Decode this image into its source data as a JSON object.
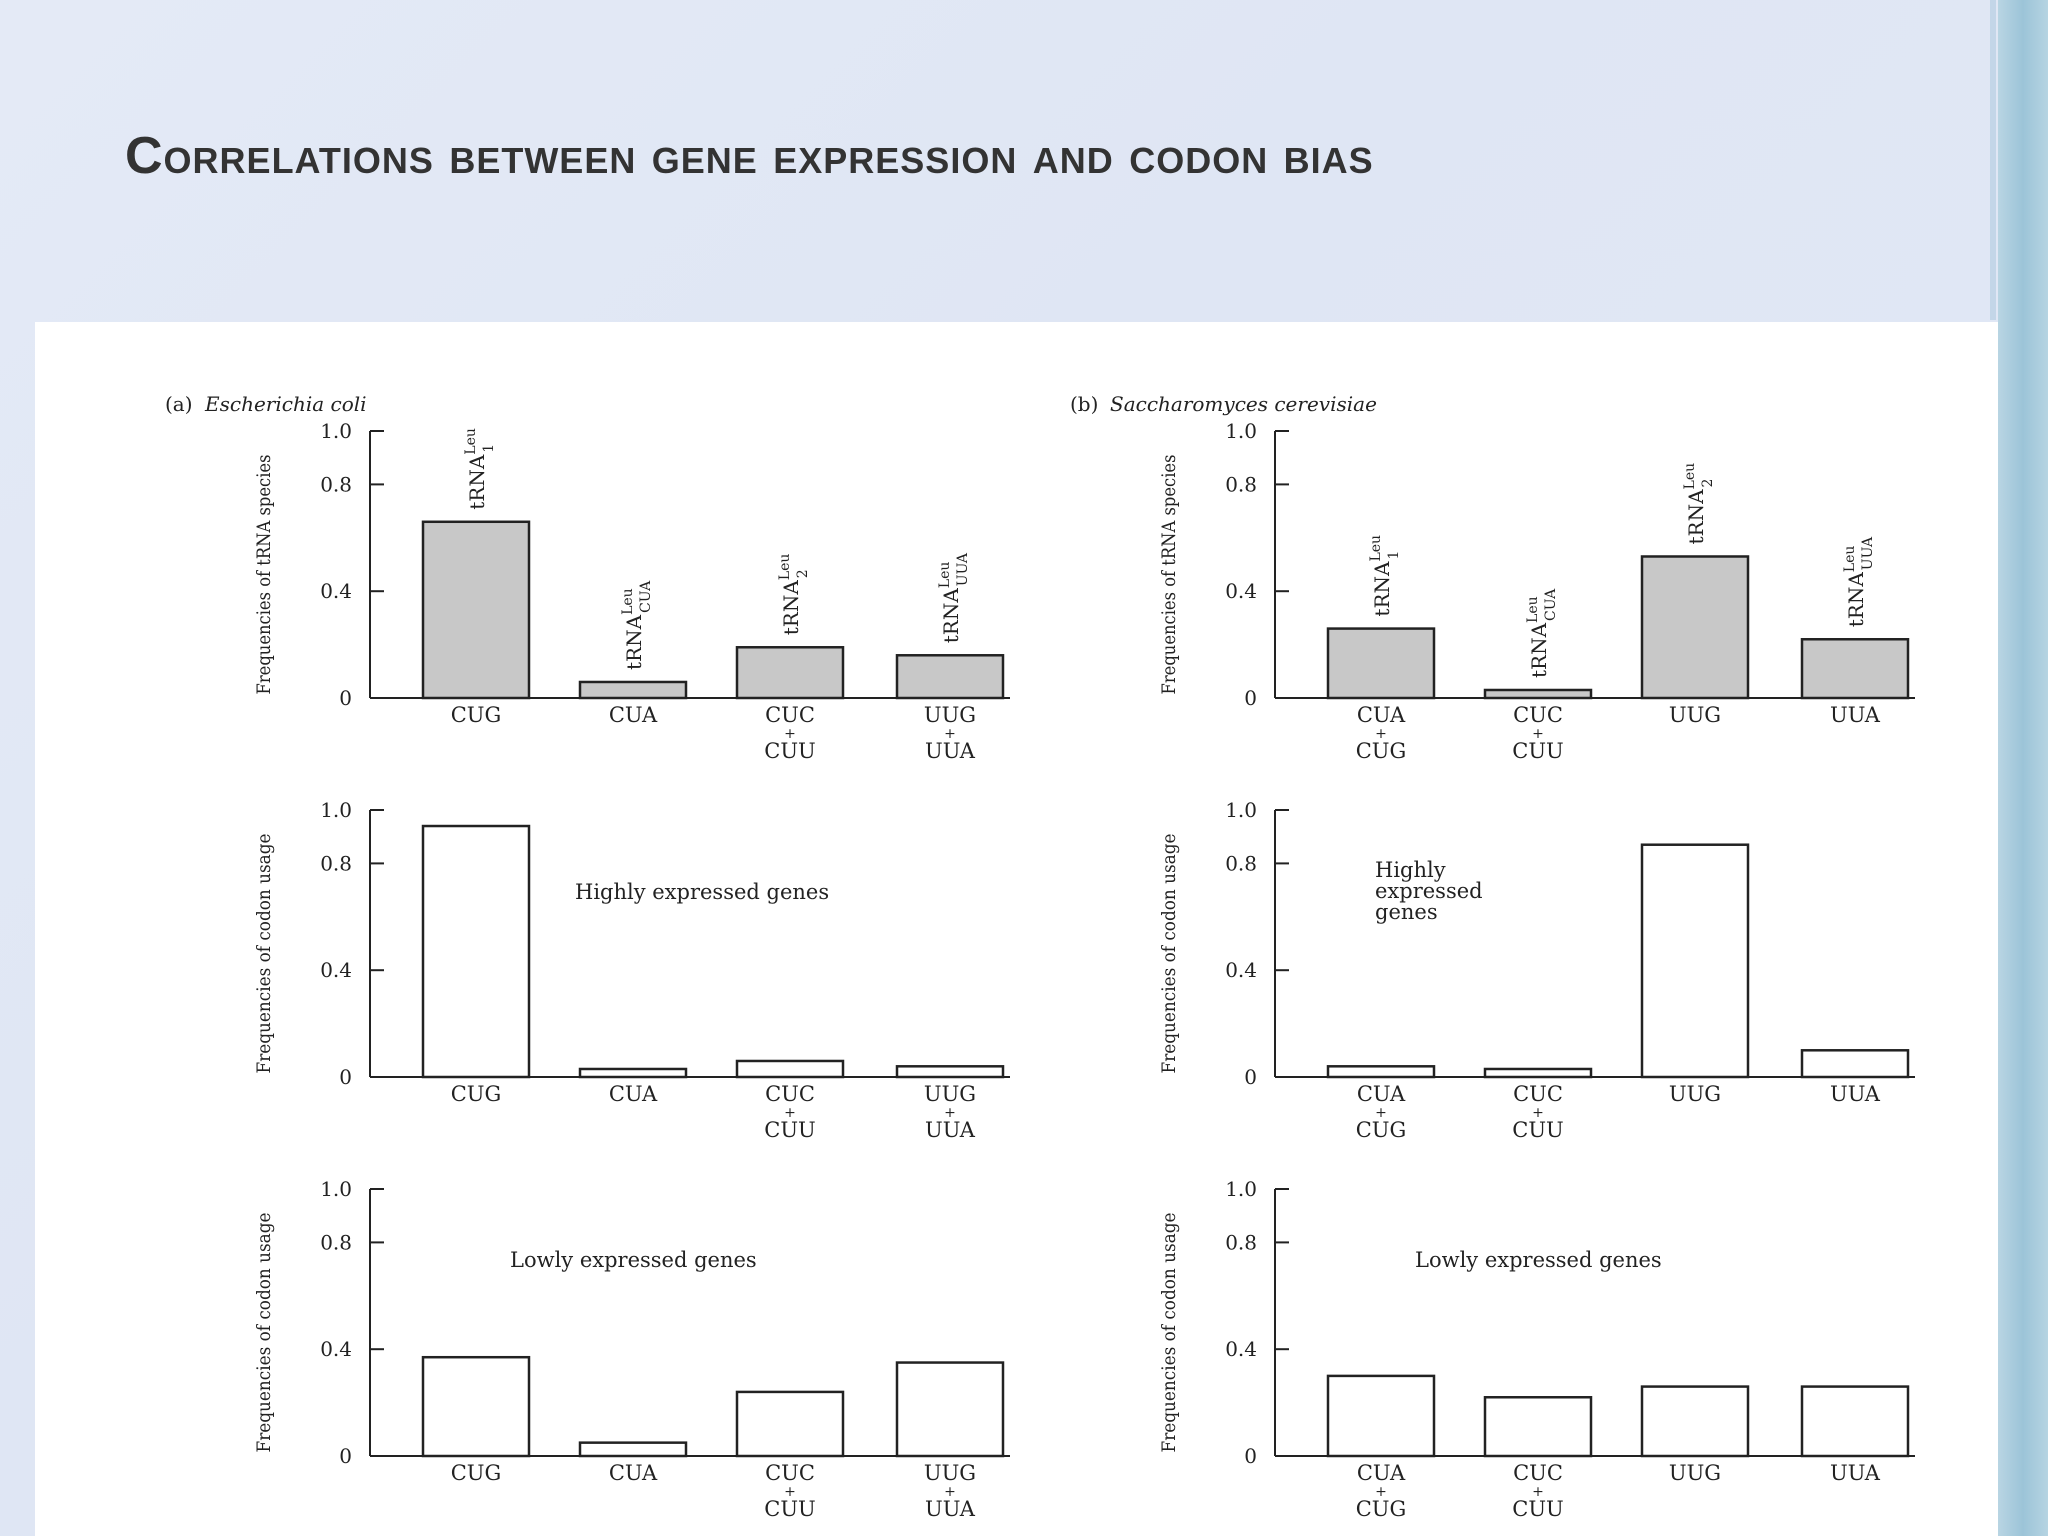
{
  "slide": {
    "title": "Correlations between gene expression and codon bias"
  },
  "chart_data": [
    {
      "type": "bar",
      "id": "a-trna",
      "panel_label": "(a)",
      "organism": "Escherichia coli",
      "ylabel": "Frequencies of tRNA species",
      "annotation": "",
      "categories": [
        [
          "CUG"
        ],
        [
          "CUA"
        ],
        [
          "CUC",
          "+",
          "CUU"
        ],
        [
          "UUG",
          "+",
          "UUA"
        ]
      ],
      "bar_labels": [
        {
          "base": "tRNA",
          "sup": "Leu",
          "sub": "1"
        },
        {
          "base": "tRNA",
          "sup": "Leu",
          "sub": "CUA"
        },
        {
          "base": "tRNA",
          "sup": "Leu",
          "sub": "2"
        },
        {
          "base": "tRNA",
          "sup": "Leu",
          "sub": "UUA"
        }
      ],
      "values": [
        0.66,
        0.06,
        0.19,
        0.16
      ],
      "yticks": [
        "1.0",
        "0.8",
        "0.4",
        "0"
      ],
      "ytick_values": [
        1.0,
        0.8,
        0.4,
        0
      ],
      "ylim": [
        0,
        1.0
      ],
      "fill": "#c8c8c8"
    },
    {
      "type": "bar",
      "id": "b-trna",
      "panel_label": "(b)",
      "organism": "Saccharomyces cerevisiae",
      "ylabel": "Frequencies of tRNA species",
      "annotation": "",
      "categories": [
        [
          "CUA",
          "+",
          "CUG"
        ],
        [
          "CUC",
          "+",
          "CUU"
        ],
        [
          "UUG"
        ],
        [
          "UUA"
        ]
      ],
      "bar_labels": [
        {
          "base": "tRNA",
          "sup": "Leu",
          "sub": "1"
        },
        {
          "base": "tRNA",
          "sup": "Leu",
          "sub": "CUA"
        },
        {
          "base": "tRNA",
          "sup": "Leu",
          "sub": "2"
        },
        {
          "base": "tRNA",
          "sup": "Leu",
          "sub": "UUA"
        }
      ],
      "values": [
        0.26,
        0.03,
        0.53,
        0.22
      ],
      "yticks": [
        "1.0",
        "0.8",
        "0.4",
        "0"
      ],
      "ytick_values": [
        1.0,
        0.8,
        0.4,
        0
      ],
      "ylim": [
        0,
        1.0
      ],
      "fill": "#c8c8c8"
    },
    {
      "type": "bar",
      "id": "a-high",
      "panel_label": "",
      "organism": "",
      "ylabel": "Frequencies of codon usage",
      "annotation": [
        "Highly expressed genes"
      ],
      "categories": [
        [
          "CUG"
        ],
        [
          "CUA"
        ],
        [
          "CUC",
          "+",
          "CUU"
        ],
        [
          "UUG",
          "+",
          "UUA"
        ]
      ],
      "bar_labels": [],
      "values": [
        0.94,
        0.03,
        0.06,
        0.04
      ],
      "yticks": [
        "1.0",
        "0.8",
        "0.4",
        "0"
      ],
      "ytick_values": [
        1.0,
        0.8,
        0.4,
        0
      ],
      "ylim": [
        0,
        1.0
      ],
      "fill": "#ffffff"
    },
    {
      "type": "bar",
      "id": "b-high",
      "panel_label": "",
      "organism": "",
      "ylabel": "Frequencies of codon usage",
      "annotation": [
        "Highly",
        "expressed",
        "genes"
      ],
      "categories": [
        [
          "CUA",
          "+",
          "CUG"
        ],
        [
          "CUC",
          "+",
          "CUU"
        ],
        [
          "UUG"
        ],
        [
          "UUA"
        ]
      ],
      "bar_labels": [],
      "values": [
        0.04,
        0.03,
        0.87,
        0.1
      ],
      "yticks": [
        "1.0",
        "0.8",
        "0.4",
        "0"
      ],
      "ytick_values": [
        1.0,
        0.8,
        0.4,
        0
      ],
      "ylim": [
        0,
        1.0
      ],
      "fill": "#ffffff"
    },
    {
      "type": "bar",
      "id": "a-low",
      "panel_label": "",
      "organism": "",
      "ylabel": "Frequencies of codon usage",
      "annotation": [
        "Lowly expressed genes"
      ],
      "categories": [
        [
          "CUG"
        ],
        [
          "CUA"
        ],
        [
          "CUC",
          "+",
          "CUU"
        ],
        [
          "UUG",
          "+",
          "UUA"
        ]
      ],
      "bar_labels": [],
      "values": [
        0.37,
        0.05,
        0.24,
        0.35
      ],
      "yticks": [
        "1.0",
        "0.8",
        "0.4",
        "0"
      ],
      "ytick_values": [
        1.0,
        0.8,
        0.4,
        0
      ],
      "ylim": [
        0,
        1.0
      ],
      "fill": "#ffffff"
    },
    {
      "type": "bar",
      "id": "b-low",
      "panel_label": "",
      "organism": "",
      "ylabel": "Frequencies of codon usage",
      "annotation": [
        "Lowly expressed genes"
      ],
      "categories": [
        [
          "CUA",
          "+",
          "CUG"
        ],
        [
          "CUC",
          "+",
          "CUU"
        ],
        [
          "UUG"
        ],
        [
          "UUA"
        ]
      ],
      "bar_labels": [],
      "values": [
        0.3,
        0.22,
        0.26,
        0.26
      ],
      "yticks": [
        "1.0",
        "0.8",
        "0.4",
        "0"
      ],
      "ytick_values": [
        1.0,
        0.8,
        0.4,
        0
      ],
      "ylim": [
        0,
        1.0
      ],
      "fill": "#ffffff"
    }
  ]
}
